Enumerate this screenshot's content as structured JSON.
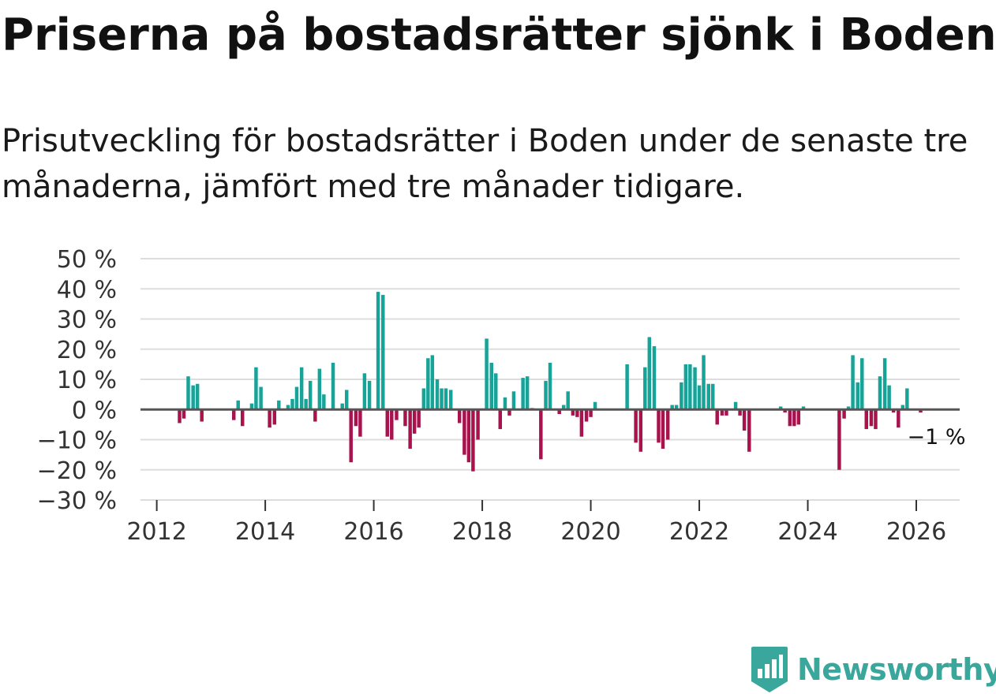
{
  "header": {
    "title": "Priserna på bostadsrätter sjönk i Boden",
    "subtitle": "Prisutveckling för bostadsrätter i Boden under de senaste tre månaderna, jämfört med tre månader tidigare."
  },
  "chart_data": {
    "type": "bar",
    "title": "Priserna på bostadsrätter sjönk i Boden",
    "subtitle": "Prisutveckling för bostadsrätter i Boden under de senaste tre månaderna, jämfört med tre månader tidigare.",
    "xlabel": "",
    "ylabel": "",
    "ylim": [
      -30,
      50
    ],
    "xlim": [
      2011.7,
      2026.8
    ],
    "y_ticks": [
      50,
      40,
      30,
      20,
      10,
      0,
      -10,
      -20,
      -30
    ],
    "y_tick_labels": [
      "50 %",
      "40 %",
      "30 %",
      "20 %",
      "10 %",
      "0 %",
      "−10 %",
      "−20 %",
      "−30 %"
    ],
    "x_ticks": [
      2012,
      2014,
      2016,
      2018,
      2020,
      2022,
      2024,
      2026
    ],
    "x_tick_labels": [
      "2012",
      "2014",
      "2016",
      "2018",
      "2020",
      "2022",
      "2024",
      "2026"
    ],
    "grid": true,
    "colors": {
      "positive": "#17a398",
      "negative": "#a8134e",
      "grid": "#dddddd",
      "zero_line": "#555555"
    },
    "annotation": {
      "text": "−1 %",
      "x": 2025.92,
      "y": -1
    },
    "bars": [
      {
        "x": 2012.42,
        "y": -4.5
      },
      {
        "x": 2012.5,
        "y": -3
      },
      {
        "x": 2012.58,
        "y": 11
      },
      {
        "x": 2012.67,
        "y": 8
      },
      {
        "x": 2012.75,
        "y": 8.5
      },
      {
        "x": 2012.83,
        "y": -4
      },
      {
        "x": 2013.42,
        "y": -3.5
      },
      {
        "x": 2013.5,
        "y": 3
      },
      {
        "x": 2013.58,
        "y": -5.5
      },
      {
        "x": 2013.75,
        "y": 2
      },
      {
        "x": 2013.83,
        "y": 14
      },
      {
        "x": 2013.92,
        "y": 7.5
      },
      {
        "x": 2014.08,
        "y": -6
      },
      {
        "x": 2014.17,
        "y": -5
      },
      {
        "x": 2014.25,
        "y": 3
      },
      {
        "x": 2014.42,
        "y": 1.5
      },
      {
        "x": 2014.5,
        "y": 3.5
      },
      {
        "x": 2014.58,
        "y": 7.5
      },
      {
        "x": 2014.67,
        "y": 14
      },
      {
        "x": 2014.75,
        "y": 3.5
      },
      {
        "x": 2014.83,
        "y": 9.5
      },
      {
        "x": 2014.92,
        "y": -4
      },
      {
        "x": 2015.0,
        "y": 13.5
      },
      {
        "x": 2015.08,
        "y": 5
      },
      {
        "x": 2015.25,
        "y": 15.5
      },
      {
        "x": 2015.42,
        "y": 2
      },
      {
        "x": 2015.5,
        "y": 6.5
      },
      {
        "x": 2015.58,
        "y": -17.5
      },
      {
        "x": 2015.67,
        "y": -5.5
      },
      {
        "x": 2015.75,
        "y": -9
      },
      {
        "x": 2015.83,
        "y": 12
      },
      {
        "x": 2015.92,
        "y": 9.5
      },
      {
        "x": 2016.08,
        "y": 39
      },
      {
        "x": 2016.17,
        "y": 38
      },
      {
        "x": 2016.25,
        "y": -9
      },
      {
        "x": 2016.33,
        "y": -10
      },
      {
        "x": 2016.42,
        "y": -3.5
      },
      {
        "x": 2016.58,
        "y": -5.5
      },
      {
        "x": 2016.67,
        "y": -13
      },
      {
        "x": 2016.75,
        "y": -8
      },
      {
        "x": 2016.83,
        "y": -6
      },
      {
        "x": 2016.92,
        "y": 7
      },
      {
        "x": 2017.0,
        "y": 17
      },
      {
        "x": 2017.08,
        "y": 18
      },
      {
        "x": 2017.17,
        "y": 10
      },
      {
        "x": 2017.25,
        "y": 7
      },
      {
        "x": 2017.33,
        "y": 7
      },
      {
        "x": 2017.42,
        "y": 6.5
      },
      {
        "x": 2017.58,
        "y": -4.5
      },
      {
        "x": 2017.67,
        "y": -15
      },
      {
        "x": 2017.75,
        "y": -17.5
      },
      {
        "x": 2017.83,
        "y": -20.5
      },
      {
        "x": 2017.92,
        "y": -10
      },
      {
        "x": 2018.08,
        "y": 23.5
      },
      {
        "x": 2018.17,
        "y": 15.5
      },
      {
        "x": 2018.25,
        "y": 12
      },
      {
        "x": 2018.33,
        "y": -6.5
      },
      {
        "x": 2018.42,
        "y": 4
      },
      {
        "x": 2018.5,
        "y": -2
      },
      {
        "x": 2018.58,
        "y": 6
      },
      {
        "x": 2018.75,
        "y": 10.5
      },
      {
        "x": 2018.83,
        "y": 11
      },
      {
        "x": 2018.92,
        "y": 0.5
      },
      {
        "x": 2019.08,
        "y": -16.5
      },
      {
        "x": 2019.17,
        "y": 9.5
      },
      {
        "x": 2019.25,
        "y": 15.5
      },
      {
        "x": 2019.42,
        "y": -1.5
      },
      {
        "x": 2019.5,
        "y": 1.5
      },
      {
        "x": 2019.58,
        "y": 6
      },
      {
        "x": 2019.67,
        "y": -2
      },
      {
        "x": 2019.75,
        "y": -2.5
      },
      {
        "x": 2019.83,
        "y": -9
      },
      {
        "x": 2019.92,
        "y": -4
      },
      {
        "x": 2020.0,
        "y": -2.5
      },
      {
        "x": 2020.08,
        "y": 2.5
      },
      {
        "x": 2020.67,
        "y": 15
      },
      {
        "x": 2020.83,
        "y": -11
      },
      {
        "x": 2020.92,
        "y": -14
      },
      {
        "x": 2021.0,
        "y": 14
      },
      {
        "x": 2021.08,
        "y": 24
      },
      {
        "x": 2021.17,
        "y": 21
      },
      {
        "x": 2021.25,
        "y": -11
      },
      {
        "x": 2021.33,
        "y": -13
      },
      {
        "x": 2021.42,
        "y": -10
      },
      {
        "x": 2021.5,
        "y": 1.5
      },
      {
        "x": 2021.58,
        "y": 1.5
      },
      {
        "x": 2021.67,
        "y": 9
      },
      {
        "x": 2021.75,
        "y": 15
      },
      {
        "x": 2021.83,
        "y": 15
      },
      {
        "x": 2021.92,
        "y": 14
      },
      {
        "x": 2022.0,
        "y": 8
      },
      {
        "x": 2022.08,
        "y": 18
      },
      {
        "x": 2022.17,
        "y": 8.5
      },
      {
        "x": 2022.25,
        "y": 8.5
      },
      {
        "x": 2022.33,
        "y": -5
      },
      {
        "x": 2022.42,
        "y": -2
      },
      {
        "x": 2022.5,
        "y": -2
      },
      {
        "x": 2022.67,
        "y": 2.5
      },
      {
        "x": 2022.75,
        "y": -2
      },
      {
        "x": 2022.83,
        "y": -7
      },
      {
        "x": 2022.92,
        "y": -14
      },
      {
        "x": 2023.5,
        "y": 1
      },
      {
        "x": 2023.58,
        "y": -1
      },
      {
        "x": 2023.67,
        "y": -5.5
      },
      {
        "x": 2023.75,
        "y": -5.5
      },
      {
        "x": 2023.83,
        "y": -5
      },
      {
        "x": 2023.92,
        "y": 1
      },
      {
        "x": 2024.58,
        "y": -20
      },
      {
        "x": 2024.67,
        "y": -3
      },
      {
        "x": 2024.75,
        "y": 1
      },
      {
        "x": 2024.83,
        "y": 18
      },
      {
        "x": 2024.92,
        "y": 9
      },
      {
        "x": 2025.0,
        "y": 17
      },
      {
        "x": 2025.08,
        "y": -6.5
      },
      {
        "x": 2025.17,
        "y": -5.5
      },
      {
        "x": 2025.25,
        "y": -6.5
      },
      {
        "x": 2025.33,
        "y": 11
      },
      {
        "x": 2025.42,
        "y": 17
      },
      {
        "x": 2025.5,
        "y": 8
      },
      {
        "x": 2025.58,
        "y": -1
      },
      {
        "x": 2025.67,
        "y": -6
      },
      {
        "x": 2025.75,
        "y": 1.5
      },
      {
        "x": 2025.83,
        "y": 7
      },
      {
        "x": 2026.08,
        "y": -1
      }
    ]
  },
  "brand": {
    "name": "Newsworthy",
    "logo_icon": "newsworthy-logo-icon"
  }
}
